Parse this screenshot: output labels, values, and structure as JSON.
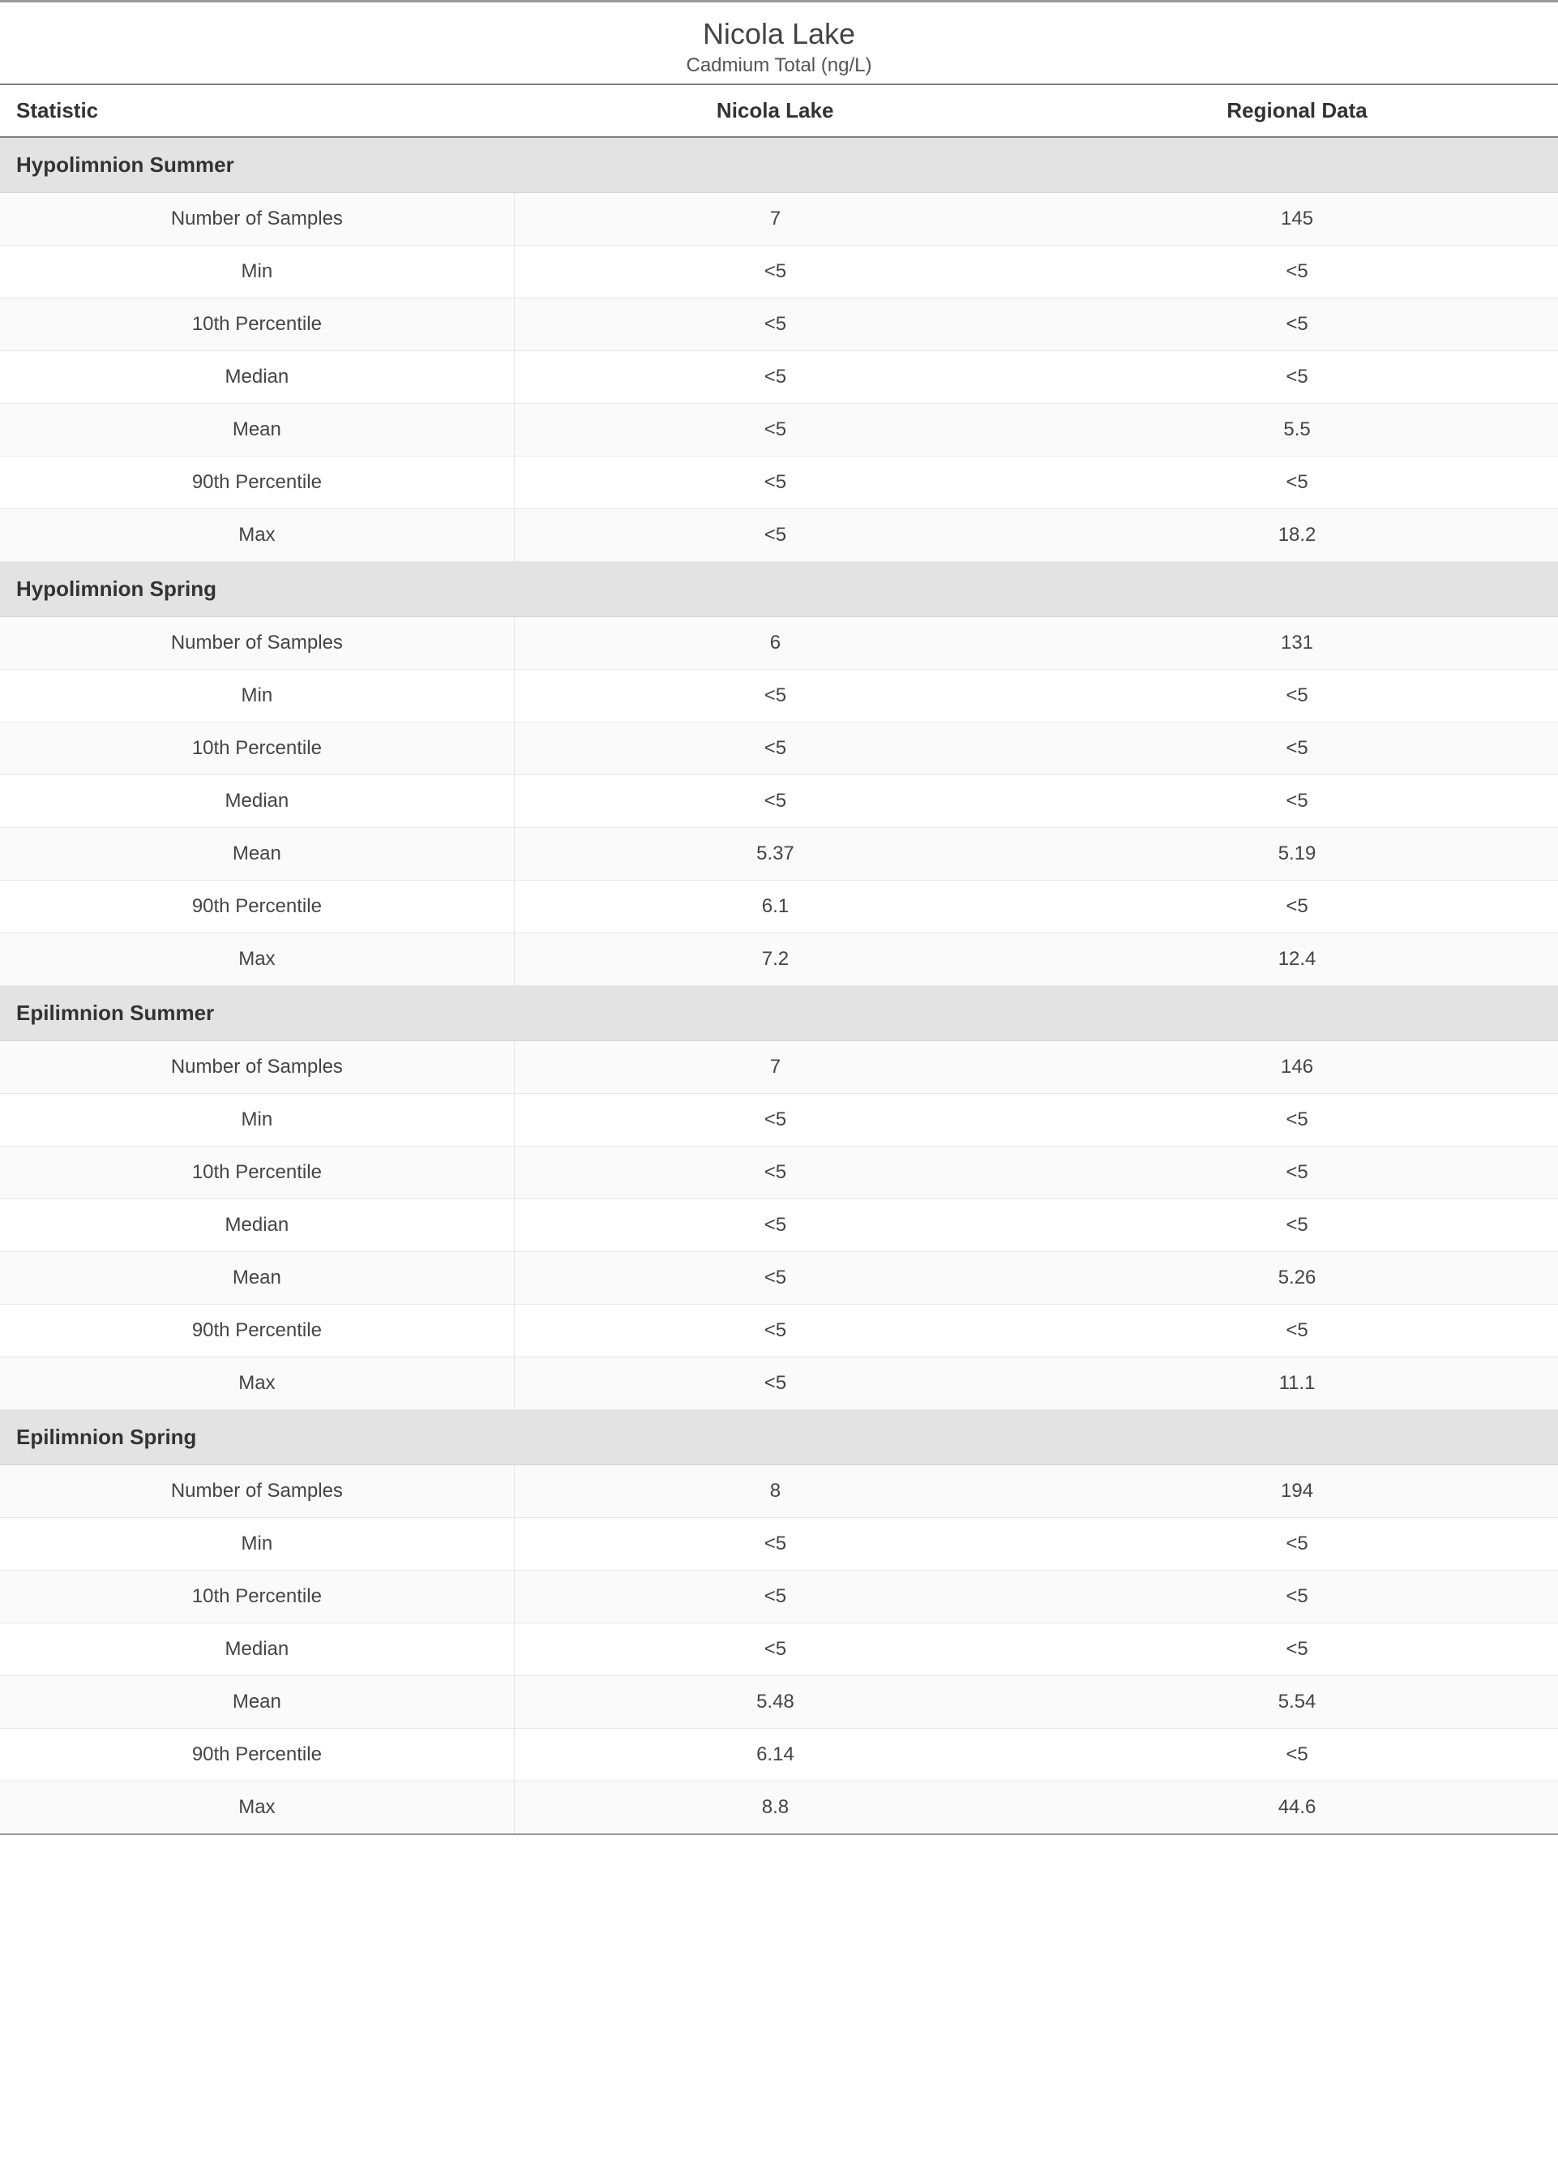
{
  "header": {
    "title": "Nicola Lake",
    "subtitle": "Cadmium Total (ng/L)"
  },
  "table": {
    "columns": [
      "Statistic",
      "Nicola Lake",
      "Regional Data"
    ],
    "column_alignment": [
      "left",
      "center",
      "center"
    ],
    "header_border_color": "#808080",
    "row_border_color": "#e7e7e7",
    "section_bg_color": "#e3e3e3",
    "alt_row_bg_color": "#fafafa",
    "font_family": "Segoe UI",
    "title_fontsize": 36,
    "subtitle_fontsize": 24,
    "header_fontsize": 26,
    "cell_fontsize": 24,
    "text_color": "#333333",
    "sections": [
      {
        "name": "Hypolimnion Summer",
        "rows": [
          [
            "Number of Samples",
            "7",
            "145"
          ],
          [
            "Min",
            "<5",
            "<5"
          ],
          [
            "10th Percentile",
            "<5",
            "<5"
          ],
          [
            "Median",
            "<5",
            "<5"
          ],
          [
            "Mean",
            "<5",
            "5.5"
          ],
          [
            "90th Percentile",
            "<5",
            "<5"
          ],
          [
            "Max",
            "<5",
            "18.2"
          ]
        ]
      },
      {
        "name": "Hypolimnion Spring",
        "rows": [
          [
            "Number of Samples",
            "6",
            "131"
          ],
          [
            "Min",
            "<5",
            "<5"
          ],
          [
            "10th Percentile",
            "<5",
            "<5"
          ],
          [
            "Median",
            "<5",
            "<5"
          ],
          [
            "Mean",
            "5.37",
            "5.19"
          ],
          [
            "90th Percentile",
            "6.1",
            "<5"
          ],
          [
            "Max",
            "7.2",
            "12.4"
          ]
        ]
      },
      {
        "name": "Epilimnion Summer",
        "rows": [
          [
            "Number of Samples",
            "7",
            "146"
          ],
          [
            "Min",
            "<5",
            "<5"
          ],
          [
            "10th Percentile",
            "<5",
            "<5"
          ],
          [
            "Median",
            "<5",
            "<5"
          ],
          [
            "Mean",
            "<5",
            "5.26"
          ],
          [
            "90th Percentile",
            "<5",
            "<5"
          ],
          [
            "Max",
            "<5",
            "11.1"
          ]
        ]
      },
      {
        "name": "Epilimnion Spring",
        "rows": [
          [
            "Number of Samples",
            "8",
            "194"
          ],
          [
            "Min",
            "<5",
            "<5"
          ],
          [
            "10th Percentile",
            "<5",
            "<5"
          ],
          [
            "Median",
            "<5",
            "<5"
          ],
          [
            "Mean",
            "5.48",
            "5.54"
          ],
          [
            "90th Percentile",
            "6.14",
            "<5"
          ],
          [
            "Max",
            "8.8",
            "44.6"
          ]
        ]
      }
    ]
  }
}
